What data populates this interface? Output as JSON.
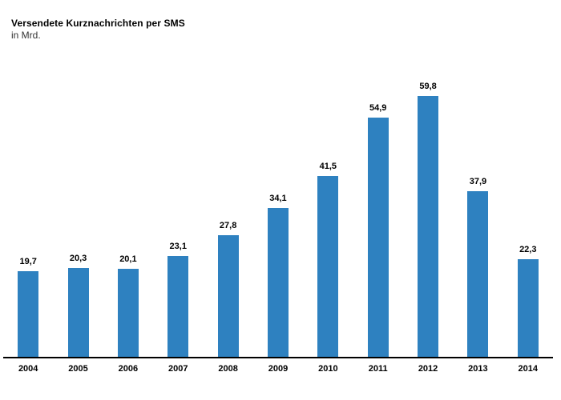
{
  "chart": {
    "title": "Versendete Kurznachrichten per SMS",
    "subtitle": "in Mrd."
  },
  "chart_data": {
    "type": "bar",
    "title": "Versendete Kurznachrichten per SMS",
    "subtitle": "in Mrd.",
    "categories": [
      "2004",
      "2005",
      "2006",
      "2007",
      "2008",
      "2009",
      "2010",
      "2011",
      "2012",
      "2013",
      "2014"
    ],
    "values": [
      19.7,
      20.3,
      20.1,
      23.1,
      27.8,
      34.1,
      41.5,
      54.9,
      59.8,
      37.9,
      22.3
    ],
    "value_labels": [
      "19,7",
      "20,3",
      "20,1",
      "23,1",
      "27,8",
      "34,1",
      "41,5",
      "54,9",
      "59,8",
      "37,9",
      "22,3"
    ],
    "xlabel": "",
    "ylabel": "",
    "ylim": [
      0,
      65
    ],
    "grid": false,
    "legend": false,
    "bar_color": "#2E81C0",
    "axis_line_color": "#000000",
    "label_color": "#000000"
  }
}
